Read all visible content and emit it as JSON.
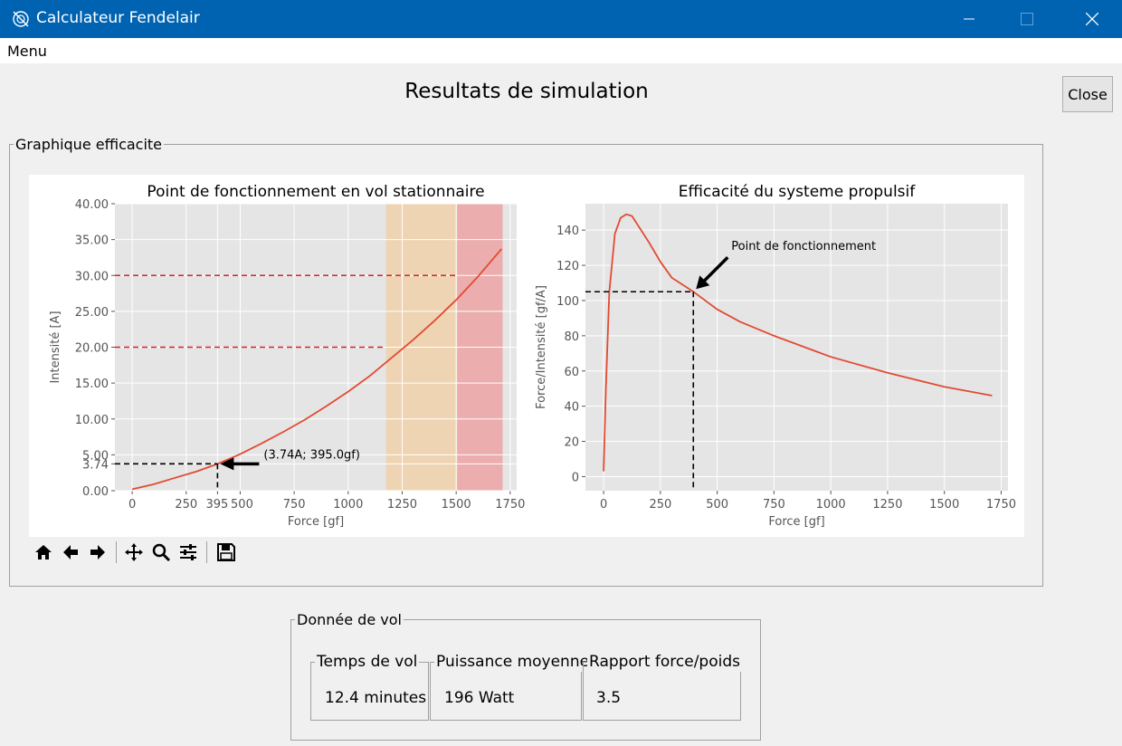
{
  "window": {
    "title": "Calculateur Fendelair"
  },
  "menu": {
    "label": "Menu"
  },
  "heading": "Resultats de simulation",
  "close_button": "Close",
  "graph_group": {
    "label": "Graphique efficacite"
  },
  "flight_group": {
    "label": "Donnée de vol",
    "fields": [
      {
        "label": "Temps de vol",
        "value": "12.4 minutes"
      },
      {
        "label": "Puissance moyenne",
        "value": "196 Watt"
      },
      {
        "label": "Rapport force/poids",
        "value": "3.5"
      }
    ]
  },
  "toolbar": [
    "home-icon",
    "back-icon",
    "forward-icon",
    "pan-icon",
    "zoom-icon",
    "configure-subplots-icon",
    "save-icon"
  ],
  "colors": {
    "titlebar": "#0063b1",
    "curve": "#e24a33",
    "plot_bg": "#e5e5e5",
    "orange_band": "#f5c78b",
    "red_band": "#f08080",
    "guide_red": "#d62728"
  },
  "chart_data": [
    {
      "type": "line",
      "title": "Point de fonctionnement en vol stationnaire",
      "xlabel": "Force [gf]",
      "ylabel": "Intensité [A]",
      "xlim": [
        -80,
        1780
      ],
      "ylim": [
        0,
        40
      ],
      "xticks": [
        "0",
        "250",
        "395",
        "500",
        "750",
        "1000",
        "1250",
        "1500",
        "1750"
      ],
      "xtick_values": [
        0,
        250,
        395,
        500,
        750,
        1000,
        1250,
        1500,
        1750
      ],
      "yticks": [
        "0.00",
        "3.74",
        "5.00",
        "10.00",
        "15.00",
        "20.00",
        "25.00",
        "30.00",
        "35.00",
        "40.00"
      ],
      "ytick_values": [
        0,
        3.74,
        5,
        10,
        15,
        20,
        25,
        30,
        35,
        40
      ],
      "grid": true,
      "series": [
        {
          "x": [
            0,
            100,
            200,
            300,
            395,
            500,
            600,
            700,
            800,
            900,
            1000,
            1100,
            1200,
            1300,
            1400,
            1500,
            1600,
            1710
          ],
          "y": [
            0.2,
            0.9,
            1.8,
            2.7,
            3.74,
            5.1,
            6.6,
            8.2,
            9.9,
            11.8,
            13.8,
            16.0,
            18.5,
            21.0,
            23.7,
            26.6,
            29.8,
            33.7
          ]
        }
      ],
      "bands": [
        {
          "from": 1175,
          "to": 1505,
          "color": "orange"
        },
        {
          "from": 1505,
          "to": 1715,
          "color": "red"
        }
      ],
      "hlines": [
        {
          "y": 30,
          "x_end": 1505,
          "color": "red"
        },
        {
          "y": 20,
          "x_end": 1175,
          "color": "red"
        }
      ],
      "operating_point": {
        "x": 395,
        "y": 3.74
      },
      "annotation": "(3.74A; 395.0gf)"
    },
    {
      "type": "line",
      "title": "Efficacité du systeme propulsif",
      "xlabel": "Force [gf]",
      "ylabel": "Force/Intensité [gf/A]",
      "xlim": [
        -80,
        1780
      ],
      "ylim": [
        -8,
        155
      ],
      "xticks": [
        "0",
        "250",
        "500",
        "750",
        "1000",
        "1250",
        "1500",
        "1750"
      ],
      "xtick_values": [
        0,
        250,
        500,
        750,
        1000,
        1250,
        1500,
        1750
      ],
      "yticks": [
        "0",
        "20",
        "40",
        "60",
        "80",
        "100",
        "120",
        "140"
      ],
      "ytick_values": [
        0,
        20,
        40,
        60,
        80,
        100,
        120,
        140
      ],
      "grid": true,
      "series": [
        {
          "x": [
            0,
            10,
            25,
            50,
            75,
            100,
            125,
            150,
            200,
            250,
            300,
            395,
            500,
            600,
            750,
            1000,
            1250,
            1500,
            1710
          ],
          "y": [
            3,
            50,
            105,
            138,
            147,
            149,
            148,
            143,
            133,
            122,
            113,
            105,
            95,
            88,
            80,
            68,
            59,
            51,
            46
          ]
        }
      ],
      "operating_point": {
        "x": 395,
        "y": 105
      },
      "annotation": "Point de fonctionnement"
    }
  ]
}
